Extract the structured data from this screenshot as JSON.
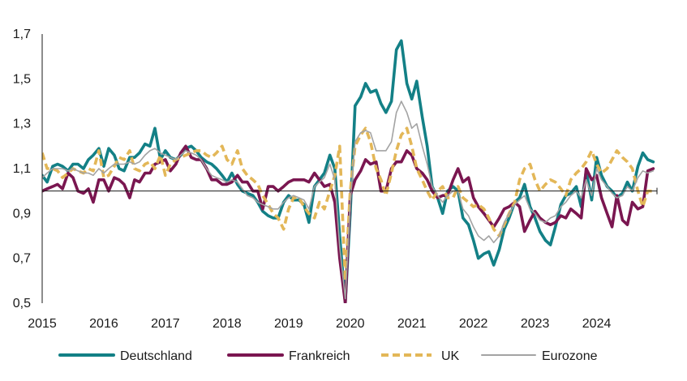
{
  "chart_data": {
    "type": "line",
    "title": "",
    "xlabel": "",
    "ylabel": "",
    "ylim": [
      0.5,
      1.7
    ],
    "xlim": [
      2015.0,
      2024.98
    ],
    "yticks": [
      0.5,
      0.7,
      0.9,
      1.1,
      1.3,
      1.5,
      1.7
    ],
    "ytick_labels": [
      "0,5",
      "0,7",
      "0,9",
      "1,1",
      "1,3",
      "1,5",
      "1,7"
    ],
    "xticks": [
      2015,
      2016,
      2017,
      2018,
      2019,
      2020,
      2021,
      2022,
      2023,
      2024
    ],
    "xtick_labels": [
      "2015",
      "2016",
      "2017",
      "2018",
      "2019",
      "2020",
      "2021",
      "2022",
      "2023",
      "2024"
    ],
    "reference_line": 1.0,
    "grid": false,
    "legend_position": "bottom",
    "series": [
      {
        "name": "Deutschland",
        "color": "#138086",
        "dash": "solid",
        "x": [
          2015.0,
          2015.08,
          2015.17,
          2015.25,
          2015.33,
          2015.42,
          2015.5,
          2015.58,
          2015.67,
          2015.75,
          2015.83,
          2015.92,
          2016.0,
          2016.08,
          2016.17,
          2016.25,
          2016.33,
          2016.42,
          2016.5,
          2016.58,
          2016.67,
          2016.75,
          2016.83,
          2016.92,
          2017.0,
          2017.08,
          2017.17,
          2017.25,
          2017.33,
          2017.42,
          2017.5,
          2017.58,
          2017.67,
          2017.75,
          2017.83,
          2017.92,
          2018.0,
          2018.08,
          2018.17,
          2018.25,
          2018.33,
          2018.42,
          2018.5,
          2018.58,
          2018.67,
          2018.75,
          2018.83,
          2018.92,
          2019.0,
          2019.08,
          2019.17,
          2019.25,
          2019.33,
          2019.42,
          2019.5,
          2019.58,
          2019.67,
          2019.75,
          2019.83,
          2019.92,
          2020.0,
          2020.08,
          2020.17,
          2020.25,
          2020.33,
          2020.42,
          2020.5,
          2020.58,
          2020.67,
          2020.75,
          2020.83,
          2020.92,
          2021.0,
          2021.08,
          2021.17,
          2021.25,
          2021.33,
          2021.42,
          2021.5,
          2021.58,
          2021.67,
          2021.75,
          2021.83,
          2021.92,
          2022.0,
          2022.08,
          2022.17,
          2022.25,
          2022.33,
          2022.42,
          2022.5,
          2022.58,
          2022.67,
          2022.75,
          2022.83,
          2022.92,
          2023.0,
          2023.08,
          2023.17,
          2023.25,
          2023.33,
          2023.42,
          2023.5,
          2023.58,
          2023.67,
          2023.75,
          2023.83,
          2023.92,
          2024.0,
          2024.08,
          2024.17,
          2024.25,
          2024.33,
          2024.42,
          2024.5,
          2024.58,
          2024.67,
          2024.75,
          2024.83,
          2024.92
        ],
        "values": [
          1.07,
          1.04,
          1.11,
          1.12,
          1.11,
          1.09,
          1.12,
          1.12,
          1.1,
          1.14,
          1.16,
          1.19,
          1.11,
          1.19,
          1.16,
          1.1,
          1.09,
          1.15,
          1.15,
          1.17,
          1.21,
          1.2,
          1.28,
          1.14,
          1.18,
          1.15,
          1.14,
          1.16,
          1.19,
          1.2,
          1.18,
          1.15,
          1.13,
          1.12,
          1.1,
          1.07,
          1.04,
          1.08,
          1.03,
          1.0,
          0.99,
          0.98,
          0.95,
          0.91,
          0.89,
          0.88,
          0.88,
          0.95,
          0.98,
          0.96,
          0.96,
          0.94,
          0.86,
          1.02,
          1.05,
          1.08,
          1.16,
          1.1,
          0.8,
          0.5,
          0.9,
          1.38,
          1.42,
          1.48,
          1.44,
          1.45,
          1.39,
          1.35,
          1.4,
          1.63,
          1.67,
          1.48,
          1.41,
          1.49,
          1.33,
          1.2,
          1.02,
          0.97,
          0.9,
          1.0,
          1.02,
          1.0,
          0.88,
          0.85,
          0.78,
          0.7,
          0.72,
          0.73,
          0.67,
          0.74,
          0.83,
          0.88,
          0.95,
          0.97,
          1.03,
          0.93,
          0.88,
          0.82,
          0.78,
          0.76,
          0.84,
          0.94,
          0.98,
          0.99,
          1.02,
          0.93,
          1.09,
          0.96,
          1.15,
          1.07,
          1.02,
          1.0,
          0.97,
          0.99,
          1.04,
          1.0,
          1.11,
          1.17,
          1.14,
          1.13
        ]
      },
      {
        "name": "Frankreich",
        "color": "#7a1650",
        "dash": "solid",
        "x": [
          2015.0,
          2015.08,
          2015.17,
          2015.25,
          2015.33,
          2015.42,
          2015.5,
          2015.58,
          2015.67,
          2015.75,
          2015.83,
          2015.92,
          2016.0,
          2016.08,
          2016.17,
          2016.25,
          2016.33,
          2016.42,
          2016.5,
          2016.58,
          2016.67,
          2016.75,
          2016.83,
          2016.92,
          2017.0,
          2017.08,
          2017.17,
          2017.25,
          2017.33,
          2017.42,
          2017.5,
          2017.58,
          2017.67,
          2017.75,
          2017.83,
          2017.92,
          2018.0,
          2018.08,
          2018.17,
          2018.25,
          2018.33,
          2018.42,
          2018.5,
          2018.58,
          2018.67,
          2018.75,
          2018.83,
          2018.92,
          2019.0,
          2019.08,
          2019.17,
          2019.25,
          2019.33,
          2019.42,
          2019.5,
          2019.58,
          2019.67,
          2019.75,
          2019.83,
          2019.92,
          2020.0,
          2020.08,
          2020.17,
          2020.25,
          2020.33,
          2020.42,
          2020.5,
          2020.58,
          2020.67,
          2020.75,
          2020.83,
          2020.92,
          2021.0,
          2021.08,
          2021.17,
          2021.25,
          2021.33,
          2021.42,
          2021.5,
          2021.58,
          2021.67,
          2021.75,
          2021.83,
          2021.92,
          2022.0,
          2022.08,
          2022.17,
          2022.25,
          2022.33,
          2022.42,
          2022.5,
          2022.58,
          2022.67,
          2022.75,
          2022.83,
          2022.92,
          2023.0,
          2023.08,
          2023.17,
          2023.25,
          2023.33,
          2023.42,
          2023.5,
          2023.58,
          2023.67,
          2023.75,
          2023.83,
          2023.92,
          2024.0,
          2024.08,
          2024.17,
          2024.25,
          2024.33,
          2024.42,
          2024.5,
          2024.58,
          2024.67,
          2024.75,
          2024.83,
          2024.92
        ],
        "values": [
          1.0,
          1.01,
          1.02,
          1.03,
          1.01,
          1.08,
          1.06,
          1.0,
          0.99,
          1.01,
          0.95,
          1.05,
          1.05,
          1.0,
          1.06,
          1.05,
          1.03,
          0.97,
          1.05,
          1.04,
          1.08,
          1.08,
          1.12,
          1.13,
          1.14,
          1.09,
          1.12,
          1.17,
          1.2,
          1.15,
          1.14,
          1.14,
          1.1,
          1.05,
          1.05,
          1.03,
          1.03,
          1.04,
          1.07,
          1.04,
          1.04,
          1.0,
          1.0,
          0.92,
          1.02,
          1.02,
          1.0,
          1.02,
          1.04,
          1.05,
          1.05,
          1.05,
          1.04,
          1.08,
          1.05,
          1.02,
          1.03,
          0.95,
          0.7,
          0.5,
          0.98,
          1.05,
          1.09,
          1.14,
          1.12,
          1.13,
          1.0,
          1.0,
          1.1,
          1.13,
          1.13,
          1.18,
          1.16,
          1.1,
          1.08,
          1.05,
          1.0,
          0.97,
          0.98,
          0.98,
          1.05,
          1.1,
          1.04,
          1.06,
          0.97,
          0.93,
          0.9,
          0.87,
          0.84,
          0.88,
          0.92,
          0.93,
          0.95,
          0.93,
          0.82,
          0.87,
          0.91,
          0.88,
          0.86,
          0.85,
          0.86,
          0.89,
          0.88,
          0.92,
          0.9,
          0.88,
          1.1,
          1.05,
          1.07,
          0.97,
          0.9,
          0.84,
          0.98,
          0.87,
          0.85,
          0.95,
          0.92,
          0.93,
          1.09,
          1.1
        ]
      },
      {
        "name": "UK",
        "color": "#e3b758",
        "dash": "dashed",
        "x": [
          2015.0,
          2015.08,
          2015.17,
          2015.25,
          2015.33,
          2015.42,
          2015.5,
          2015.58,
          2015.67,
          2015.75,
          2015.83,
          2015.92,
          2016.0,
          2016.08,
          2016.17,
          2016.25,
          2016.33,
          2016.42,
          2016.5,
          2016.58,
          2016.67,
          2016.75,
          2016.83,
          2016.92,
          2017.0,
          2017.08,
          2017.17,
          2017.25,
          2017.33,
          2017.42,
          2017.5,
          2017.58,
          2017.67,
          2017.75,
          2017.83,
          2017.92,
          2018.0,
          2018.08,
          2018.17,
          2018.25,
          2018.33,
          2018.42,
          2018.5,
          2018.58,
          2018.67,
          2018.75,
          2018.83,
          2018.92,
          2019.0,
          2019.08,
          2019.17,
          2019.25,
          2019.33,
          2019.42,
          2019.5,
          2019.58,
          2019.67,
          2019.75,
          2019.83,
          2019.92,
          2020.0,
          2020.08,
          2020.17,
          2020.25,
          2020.33,
          2020.42,
          2020.5,
          2020.58,
          2020.67,
          2020.75,
          2020.83,
          2020.92,
          2021.0,
          2021.08,
          2021.17,
          2021.25,
          2021.33,
          2021.42,
          2021.5,
          2021.58,
          2021.67,
          2021.75,
          2021.83,
          2021.92,
          2022.0,
          2022.08,
          2022.17,
          2022.25,
          2022.33,
          2022.42,
          2022.5,
          2022.58,
          2022.67,
          2022.75,
          2022.83,
          2022.92,
          2023.0,
          2023.08,
          2023.17,
          2023.25,
          2023.33,
          2023.42,
          2023.5,
          2023.58,
          2023.67,
          2023.75,
          2023.83,
          2023.92,
          2024.0,
          2024.08,
          2024.17,
          2024.25,
          2024.33,
          2024.42,
          2024.5,
          2024.58,
          2024.67,
          2024.75,
          2024.83,
          2024.92
        ],
        "values": [
          1.17,
          1.1,
          1.1,
          1.09,
          1.06,
          1.08,
          1.1,
          1.09,
          1.08,
          1.1,
          1.09,
          1.18,
          1.06,
          1.07,
          1.11,
          1.15,
          1.14,
          1.18,
          1.1,
          1.09,
          1.12,
          1.13,
          1.1,
          1.16,
          1.07,
          1.12,
          1.14,
          1.15,
          1.16,
          1.17,
          1.18,
          1.18,
          1.16,
          1.15,
          1.17,
          1.2,
          1.14,
          1.12,
          1.18,
          1.1,
          1.07,
          1.05,
          1.03,
          0.98,
          0.94,
          0.9,
          0.88,
          0.83,
          0.92,
          0.97,
          0.97,
          0.93,
          0.9,
          0.88,
          0.95,
          0.92,
          1.0,
          1.07,
          1.2,
          0.6,
          1.0,
          1.2,
          1.25,
          1.28,
          1.22,
          1.1,
          1.05,
          0.98,
          1.08,
          1.18,
          1.25,
          1.28,
          1.2,
          1.1,
          1.05,
          1.0,
          0.96,
          1.0,
          1.02,
          0.97,
          0.97,
          1.02,
          0.97,
          0.95,
          0.93,
          0.94,
          0.92,
          0.88,
          0.83,
          0.8,
          0.85,
          0.9,
          0.95,
          1.05,
          1.1,
          1.12,
          1.05,
          1.0,
          1.03,
          1.05,
          1.04,
          1.01,
          0.98,
          1.05,
          1.08,
          1.1,
          1.13,
          1.18,
          1.12,
          1.08,
          1.1,
          1.14,
          1.18,
          1.15,
          1.13,
          1.1,
          1.0,
          0.93,
          1.0,
          1.0
        ]
      },
      {
        "name": "Eurozone",
        "color": "#a3a3a3",
        "dash": "solid",
        "x": [
          2015.0,
          2015.08,
          2015.17,
          2015.25,
          2015.33,
          2015.42,
          2015.5,
          2015.58,
          2015.67,
          2015.75,
          2015.83,
          2015.92,
          2016.0,
          2016.08,
          2016.17,
          2016.25,
          2016.33,
          2016.42,
          2016.5,
          2016.58,
          2016.67,
          2016.75,
          2016.83,
          2016.92,
          2017.0,
          2017.08,
          2017.17,
          2017.25,
          2017.33,
          2017.42,
          2017.5,
          2017.58,
          2017.67,
          2017.75,
          2017.83,
          2017.92,
          2018.0,
          2018.08,
          2018.17,
          2018.25,
          2018.33,
          2018.42,
          2018.5,
          2018.58,
          2018.67,
          2018.75,
          2018.83,
          2018.92,
          2019.0,
          2019.08,
          2019.17,
          2019.25,
          2019.33,
          2019.42,
          2019.5,
          2019.58,
          2019.67,
          2019.75,
          2019.83,
          2019.92,
          2020.0,
          2020.08,
          2020.17,
          2020.25,
          2020.33,
          2020.42,
          2020.5,
          2020.58,
          2020.67,
          2020.75,
          2020.83,
          2020.92,
          2021.0,
          2021.08,
          2021.17,
          2021.25,
          2021.33,
          2021.42,
          2021.5,
          2021.58,
          2021.67,
          2021.75,
          2021.83,
          2021.92,
          2022.0,
          2022.08,
          2022.17,
          2022.25,
          2022.33,
          2022.42,
          2022.5,
          2022.58,
          2022.67,
          2022.75,
          2022.83,
          2022.92,
          2023.0,
          2023.08,
          2023.17,
          2023.25,
          2023.33,
          2023.42,
          2023.5,
          2023.58,
          2023.67,
          2023.75,
          2023.83,
          2023.92,
          2024.0,
          2024.08,
          2024.17,
          2024.25,
          2024.33,
          2024.42,
          2024.5,
          2024.58,
          2024.67,
          2024.75,
          2024.83,
          2024.92
        ],
        "values": [
          1.06,
          1.08,
          1.1,
          1.1,
          1.1,
          1.09,
          1.1,
          1.09,
          1.08,
          1.08,
          1.07,
          1.1,
          1.08,
          1.1,
          1.12,
          1.12,
          1.12,
          1.13,
          1.12,
          1.13,
          1.16,
          1.18,
          1.19,
          1.17,
          1.16,
          1.15,
          1.14,
          1.16,
          1.18,
          1.17,
          1.16,
          1.14,
          1.1,
          1.07,
          1.06,
          1.05,
          1.04,
          1.05,
          1.04,
          1.01,
          0.98,
          0.97,
          0.95,
          0.94,
          0.93,
          0.92,
          0.92,
          0.95,
          0.97,
          0.98,
          0.97,
          0.96,
          0.92,
          1.02,
          1.04,
          1.06,
          1.12,
          1.05,
          0.75,
          0.52,
          0.95,
          1.22,
          1.26,
          1.27,
          1.26,
          1.18,
          1.18,
          1.18,
          1.22,
          1.35,
          1.4,
          1.35,
          1.28,
          1.3,
          1.2,
          1.12,
          1.02,
          0.98,
          0.95,
          0.98,
          1.0,
          1.0,
          0.92,
          0.89,
          0.84,
          0.8,
          0.78,
          0.8,
          0.77,
          0.8,
          0.86,
          0.9,
          0.94,
          0.96,
          0.98,
          0.92,
          0.9,
          0.87,
          0.86,
          0.88,
          0.89,
          0.93,
          0.95,
          0.98,
          1.0,
          0.97,
          1.05,
          0.98,
          1.1,
          1.05,
          1.02,
          0.99,
          0.97,
          0.98,
          1.02,
          1.0,
          1.06,
          1.09,
          1.08,
          1.09
        ]
      }
    ]
  }
}
